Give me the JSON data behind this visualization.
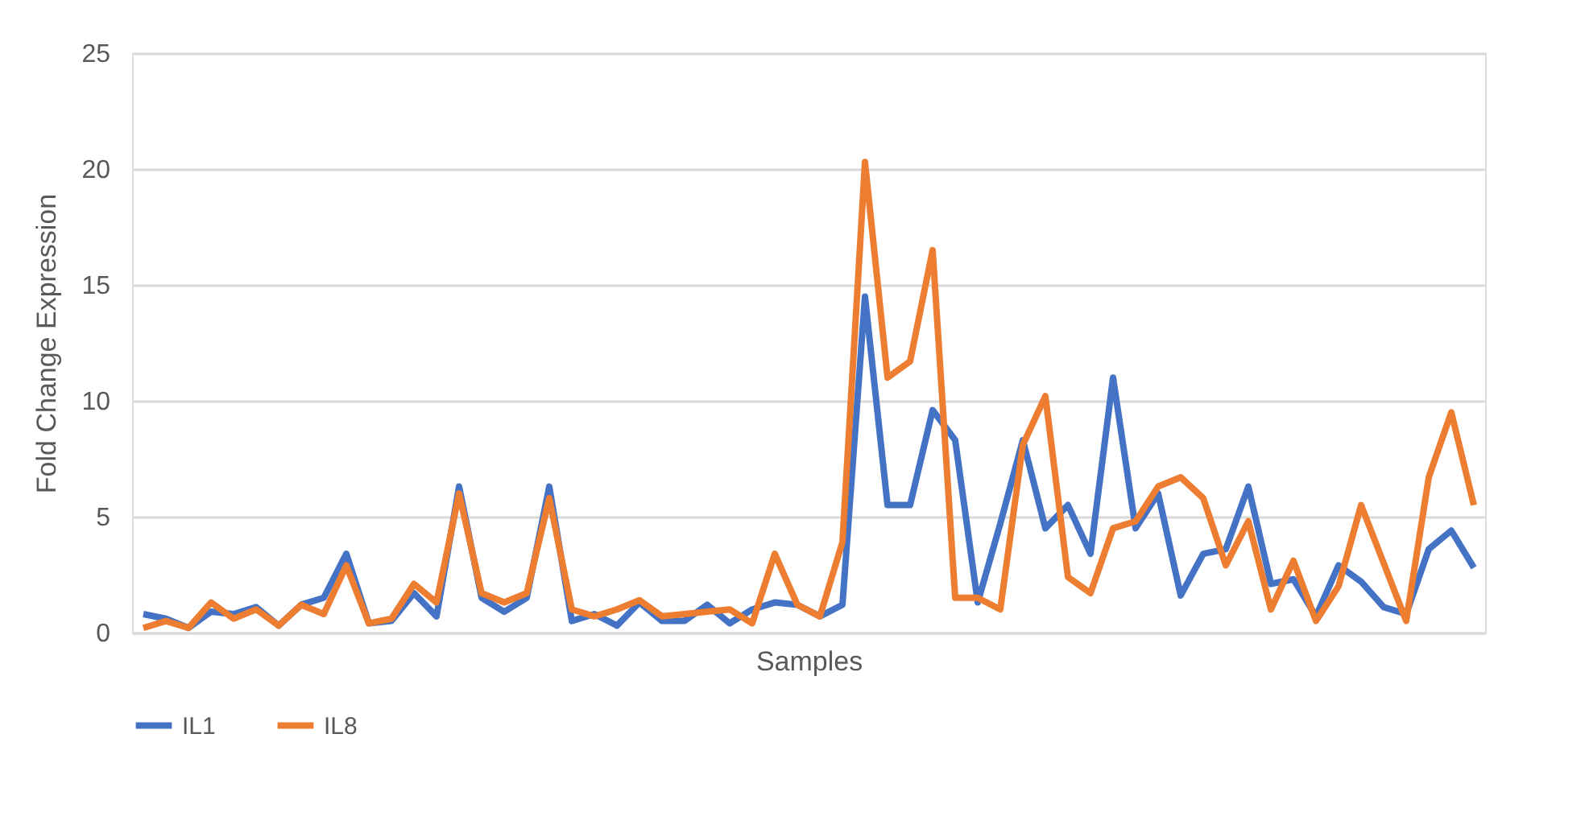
{
  "chart_data": {
    "type": "line",
    "xlabel": "Samples",
    "ylabel": "Fold Change Expression",
    "categories": [
      null,
      null,
      null,
      null,
      null,
      null,
      null,
      null,
      null,
      null,
      null,
      null,
      null,
      null,
      null,
      null,
      null,
      null,
      null,
      null,
      null,
      null,
      null,
      null,
      null,
      null,
      null,
      null,
      null,
      null,
      null,
      null,
      null,
      null,
      null,
      null,
      null,
      null,
      null,
      null,
      null,
      null,
      null,
      null,
      null,
      null,
      null,
      null,
      null,
      null,
      null,
      null,
      null,
      null,
      null,
      null,
      null,
      null,
      null,
      null
    ],
    "series": [
      {
        "name": "IL1",
        "color": "#4472c4",
        "values": [
          0.8,
          0.6,
          0.2,
          0.9,
          0.8,
          1.1,
          0.3,
          1.2,
          1.5,
          3.4,
          0.4,
          0.5,
          1.7,
          0.7,
          6.3,
          1.5,
          0.9,
          1.5,
          6.3,
          0.5,
          0.8,
          0.3,
          1.3,
          0.5,
          0.5,
          1.2,
          0.4,
          1.0,
          1.3,
          1.2,
          0.7,
          1.2,
          14.5,
          5.5,
          5.5,
          9.6,
          8.3,
          1.3,
          4.7,
          8.3,
          4.5,
          5.5,
          3.4,
          11.0,
          4.5,
          6.0,
          1.6,
          3.4,
          3.6,
          6.3,
          2.1,
          2.3,
          0.7,
          2.9,
          2.2,
          1.1,
          0.8,
          3.6,
          4.4,
          2.8
        ]
      },
      {
        "name": "IL8",
        "color": "#ed7d31",
        "values": [
          0.2,
          0.5,
          0.2,
          1.3,
          0.6,
          1.0,
          0.3,
          1.2,
          0.8,
          2.9,
          0.4,
          0.6,
          2.1,
          1.3,
          6.0,
          1.7,
          1.3,
          1.7,
          5.8,
          1.0,
          0.7,
          1.0,
          1.4,
          0.7,
          0.8,
          0.9,
          1.0,
          0.4,
          3.4,
          1.2,
          0.7,
          3.9,
          20.3,
          11.0,
          11.7,
          16.5,
          1.5,
          1.5,
          1.0,
          8.1,
          10.2,
          2.4,
          1.7,
          4.5,
          4.8,
          6.3,
          6.7,
          5.8,
          2.9,
          4.8,
          1.0,
          3.1,
          0.5,
          2.0,
          5.5,
          3.0,
          0.5,
          6.7,
          9.5,
          5.5
        ]
      }
    ],
    "ylim": [
      0,
      25
    ],
    "yticks": [
      0,
      5,
      10,
      15,
      20,
      25
    ],
    "grid": "y",
    "legend": "bottom",
    "tick_labels": "y",
    "marker": "none",
    "line_style": "solid"
  }
}
